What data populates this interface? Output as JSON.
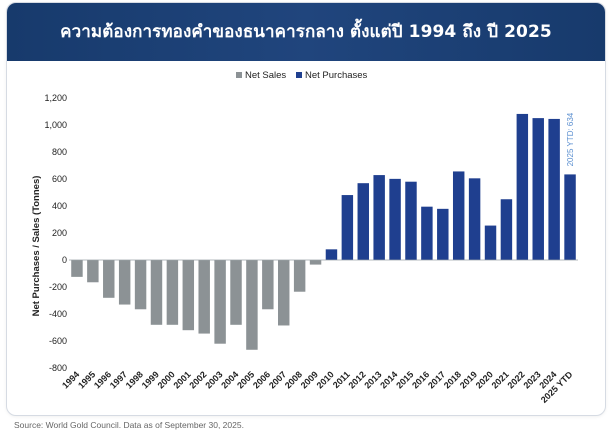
{
  "header": {
    "title": "ความต้องการทองคำของธนาคารกลาง ตั้งแต่ปี 1994 ถึง ปี 2025"
  },
  "footer": {
    "source": "Source: World Gold Council. Data as of September 30, 2025."
  },
  "colors": {
    "sales": "#8c9295",
    "purchases": "#1f3f8f",
    "header": "#1b3e72",
    "annotation": "#5b8fd0"
  },
  "chart_data": {
    "type": "bar",
    "title": "ความต้องการทองคำของธนาคารกลาง ตั้งแต่ปี 1994 ถึง ปี 2025",
    "ylabel": "Net Purchases / Sales (Tonnes)",
    "xlabel": "",
    "ylim": [
      -800,
      1200
    ],
    "yticks": [
      -800,
      -600,
      -400,
      -200,
      0,
      200,
      400,
      600,
      800,
      1000,
      1200
    ],
    "ytick_labels": [
      "-800",
      "-600",
      "-400",
      "-200",
      "0",
      "200",
      "400",
      "600",
      "800",
      "1,000",
      "1,200"
    ],
    "legend": [
      "Net Sales",
      "Net Purchases"
    ],
    "legend_position": "top-center",
    "categories": [
      "1994",
      "1995",
      "1996",
      "1997",
      "1998",
      "1999",
      "2000",
      "2001",
      "2002",
      "2003",
      "2004",
      "2005",
      "2006",
      "2007",
      "2008",
      "2009",
      "2010",
      "2011",
      "2012",
      "2013",
      "2014",
      "2015",
      "2016",
      "2017",
      "2018",
      "2019",
      "2020",
      "2021",
      "2022",
      "2023",
      "2024",
      "2025 YTD"
    ],
    "values": [
      -125,
      -165,
      -280,
      -330,
      -365,
      -480,
      -480,
      -520,
      -545,
      -620,
      -480,
      -665,
      -365,
      -485,
      -235,
      -34,
      79,
      481,
      569,
      629,
      601,
      580,
      395,
      379,
      656,
      605,
      255,
      450,
      1082,
      1051,
      1045,
      634
    ],
    "annotation": "2025 YTD: 634"
  }
}
